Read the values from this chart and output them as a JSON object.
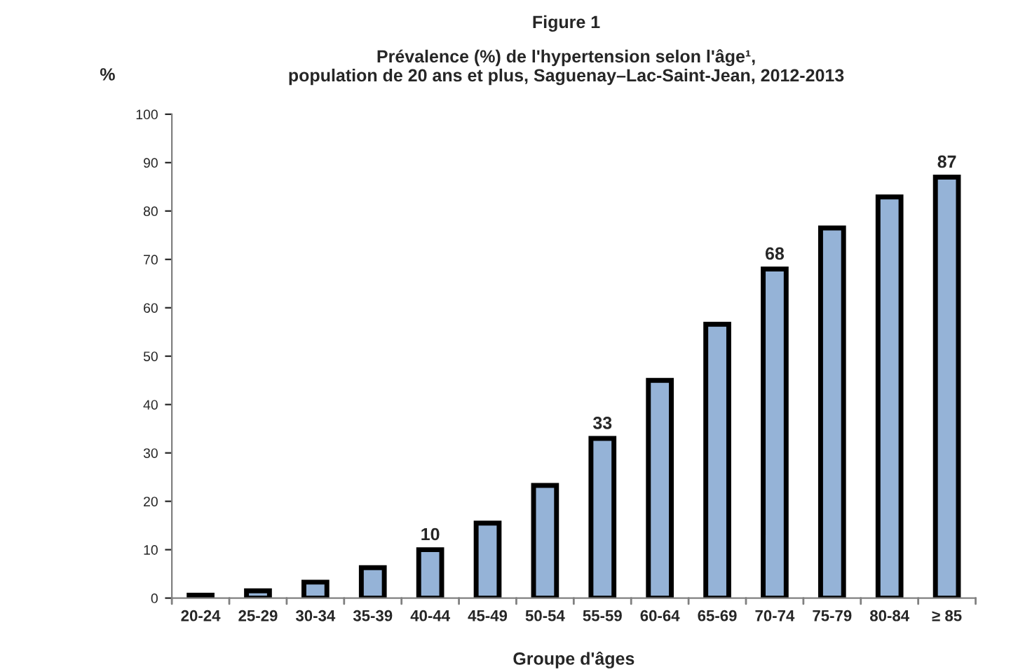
{
  "chart_data": {
    "type": "bar",
    "title": "Figure 1",
    "subtitle": "Prévalence (%) de l'hypertension selon l'âge¹,\npopulation de 20 ans et plus, Saguenay–Lac-Saint-Jean, 2012-2013",
    "xlabel": "Groupe d'âges",
    "ylabel": "%",
    "categories": [
      "20-24",
      "25-29",
      "30-34",
      "35-39",
      "40-44",
      "45-49",
      "50-54",
      "55-59",
      "60-64",
      "65-69",
      "70-74",
      "75-79",
      "80-84",
      "≥ 85"
    ],
    "values": [
      0.6,
      1.5,
      3.3,
      6.3,
      10,
      15.5,
      23.3,
      33,
      45,
      56.6,
      68,
      76.5,
      82.9,
      87
    ],
    "value_labels": [
      null,
      null,
      null,
      null,
      "10",
      null,
      null,
      "33",
      null,
      null,
      "68",
      null,
      null,
      "87"
    ],
    "color": "#95b3d7",
    "ylim": [
      0,
      100
    ],
    "yticks": [
      0,
      10,
      20,
      30,
      40,
      50,
      60,
      70,
      80,
      90,
      100
    ],
    "grid": false
  }
}
